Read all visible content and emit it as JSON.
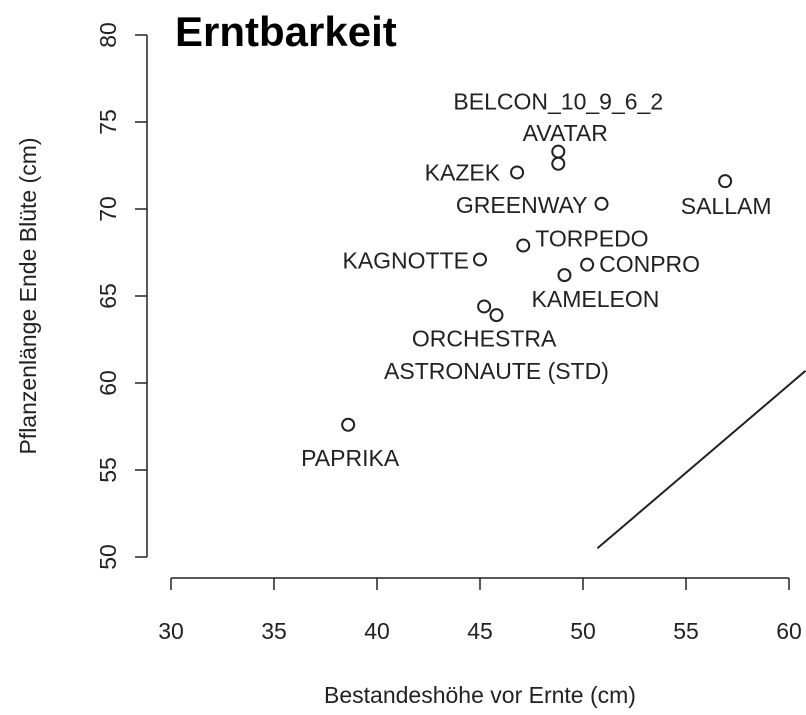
{
  "chart_data": {
    "type": "scatter",
    "title": "Erntbarkeit",
    "x_label": "Bestandeshöhe vor Ernte (cm)",
    "y_label": "Pflanzenlänge Ende Blüte (cm)",
    "labels": [
      "BELCON_10_9_6_2",
      "AVATAR",
      "KAZEK",
      "SALLAM",
      "GREENWAY",
      "TORPEDO",
      "KAGNOTTE",
      "CONPRO",
      "KAMELEON",
      "ORCHESTRA",
      "ASTRONAUTE (STD)",
      "PAPRIKA"
    ],
    "x": [
      48.8,
      48.8,
      46.8,
      56.9,
      50.9,
      47.1,
      45.0,
      50.2,
      49.1,
      45.2,
      45.8,
      38.6
    ],
    "y": [
      73.3,
      72.6,
      72.1,
      71.6,
      70.3,
      67.9,
      67.1,
      66.8,
      66.2,
      64.4,
      63.9,
      57.6
    ],
    "line": {
      "x": [
        50.7,
        60.8
      ],
      "y": [
        50.5,
        60.7
      ]
    },
    "color": "#222222",
    "xlim": [
      30,
      60
    ],
    "xticks": [
      30,
      35,
      40,
      45,
      50,
      55,
      60
    ],
    "ylim": [
      50,
      80
    ],
    "yticks": [
      50,
      55,
      60,
      65,
      70,
      75,
      80
    ]
  }
}
